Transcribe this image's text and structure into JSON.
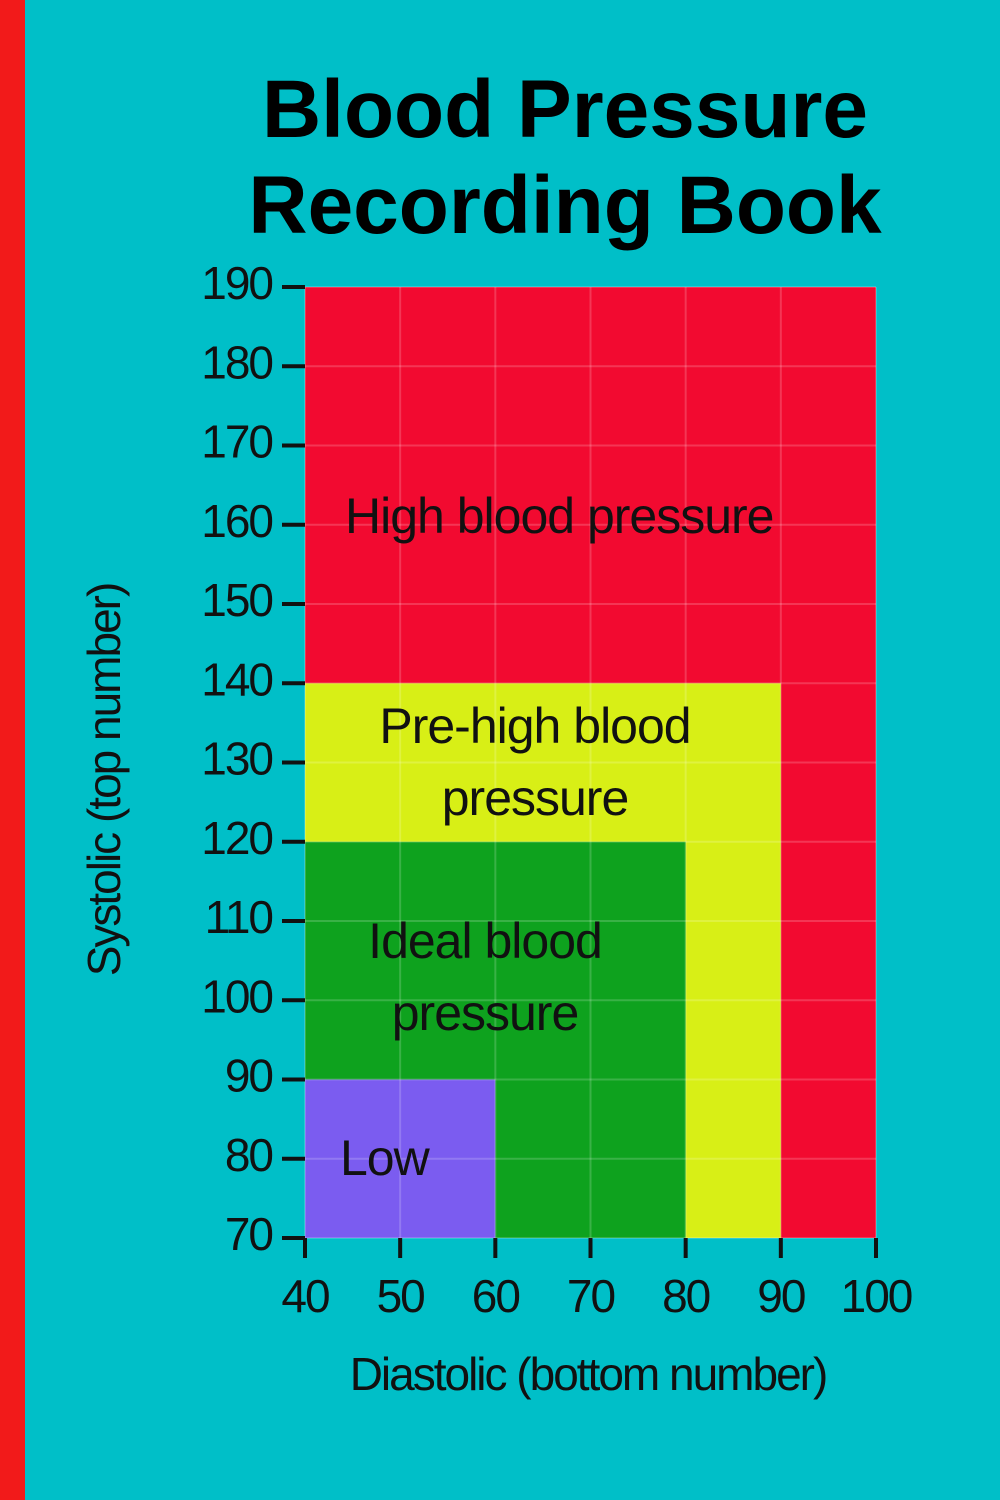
{
  "chart_data": {
    "type": "region",
    "title": "Blood Pressure Recording Book",
    "x_label": "Diastolic (bottom number)",
    "y_label": "Systolic (top number)",
    "series": [
      {
        "name": "High blood pressure",
        "color": "#f20a30",
        "x": [
          40,
          100
        ],
        "y": [
          70,
          190
        ]
      },
      {
        "name": "Pre-high blood pressure",
        "color": "#d8ef16",
        "x": [
          40,
          90
        ],
        "y": [
          70,
          140
        ]
      },
      {
        "name": "Ideal blood pressure",
        "color": "#0ea21e",
        "x": [
          40,
          80
        ],
        "y": [
          70,
          120
        ]
      },
      {
        "name": "Low",
        "color": "#7b5cf0",
        "x": [
          40,
          60
        ],
        "y": [
          70,
          90
        ]
      }
    ],
    "xlim": [
      40,
      100
    ],
    "ylim": [
      70,
      190
    ],
    "xticks": [
      40,
      50,
      60,
      70,
      80,
      90,
      100
    ],
    "yticks": [
      70,
      80,
      90,
      100,
      110,
      120,
      130,
      140,
      150,
      160,
      170,
      180,
      190
    ],
    "grid": true
  }
}
